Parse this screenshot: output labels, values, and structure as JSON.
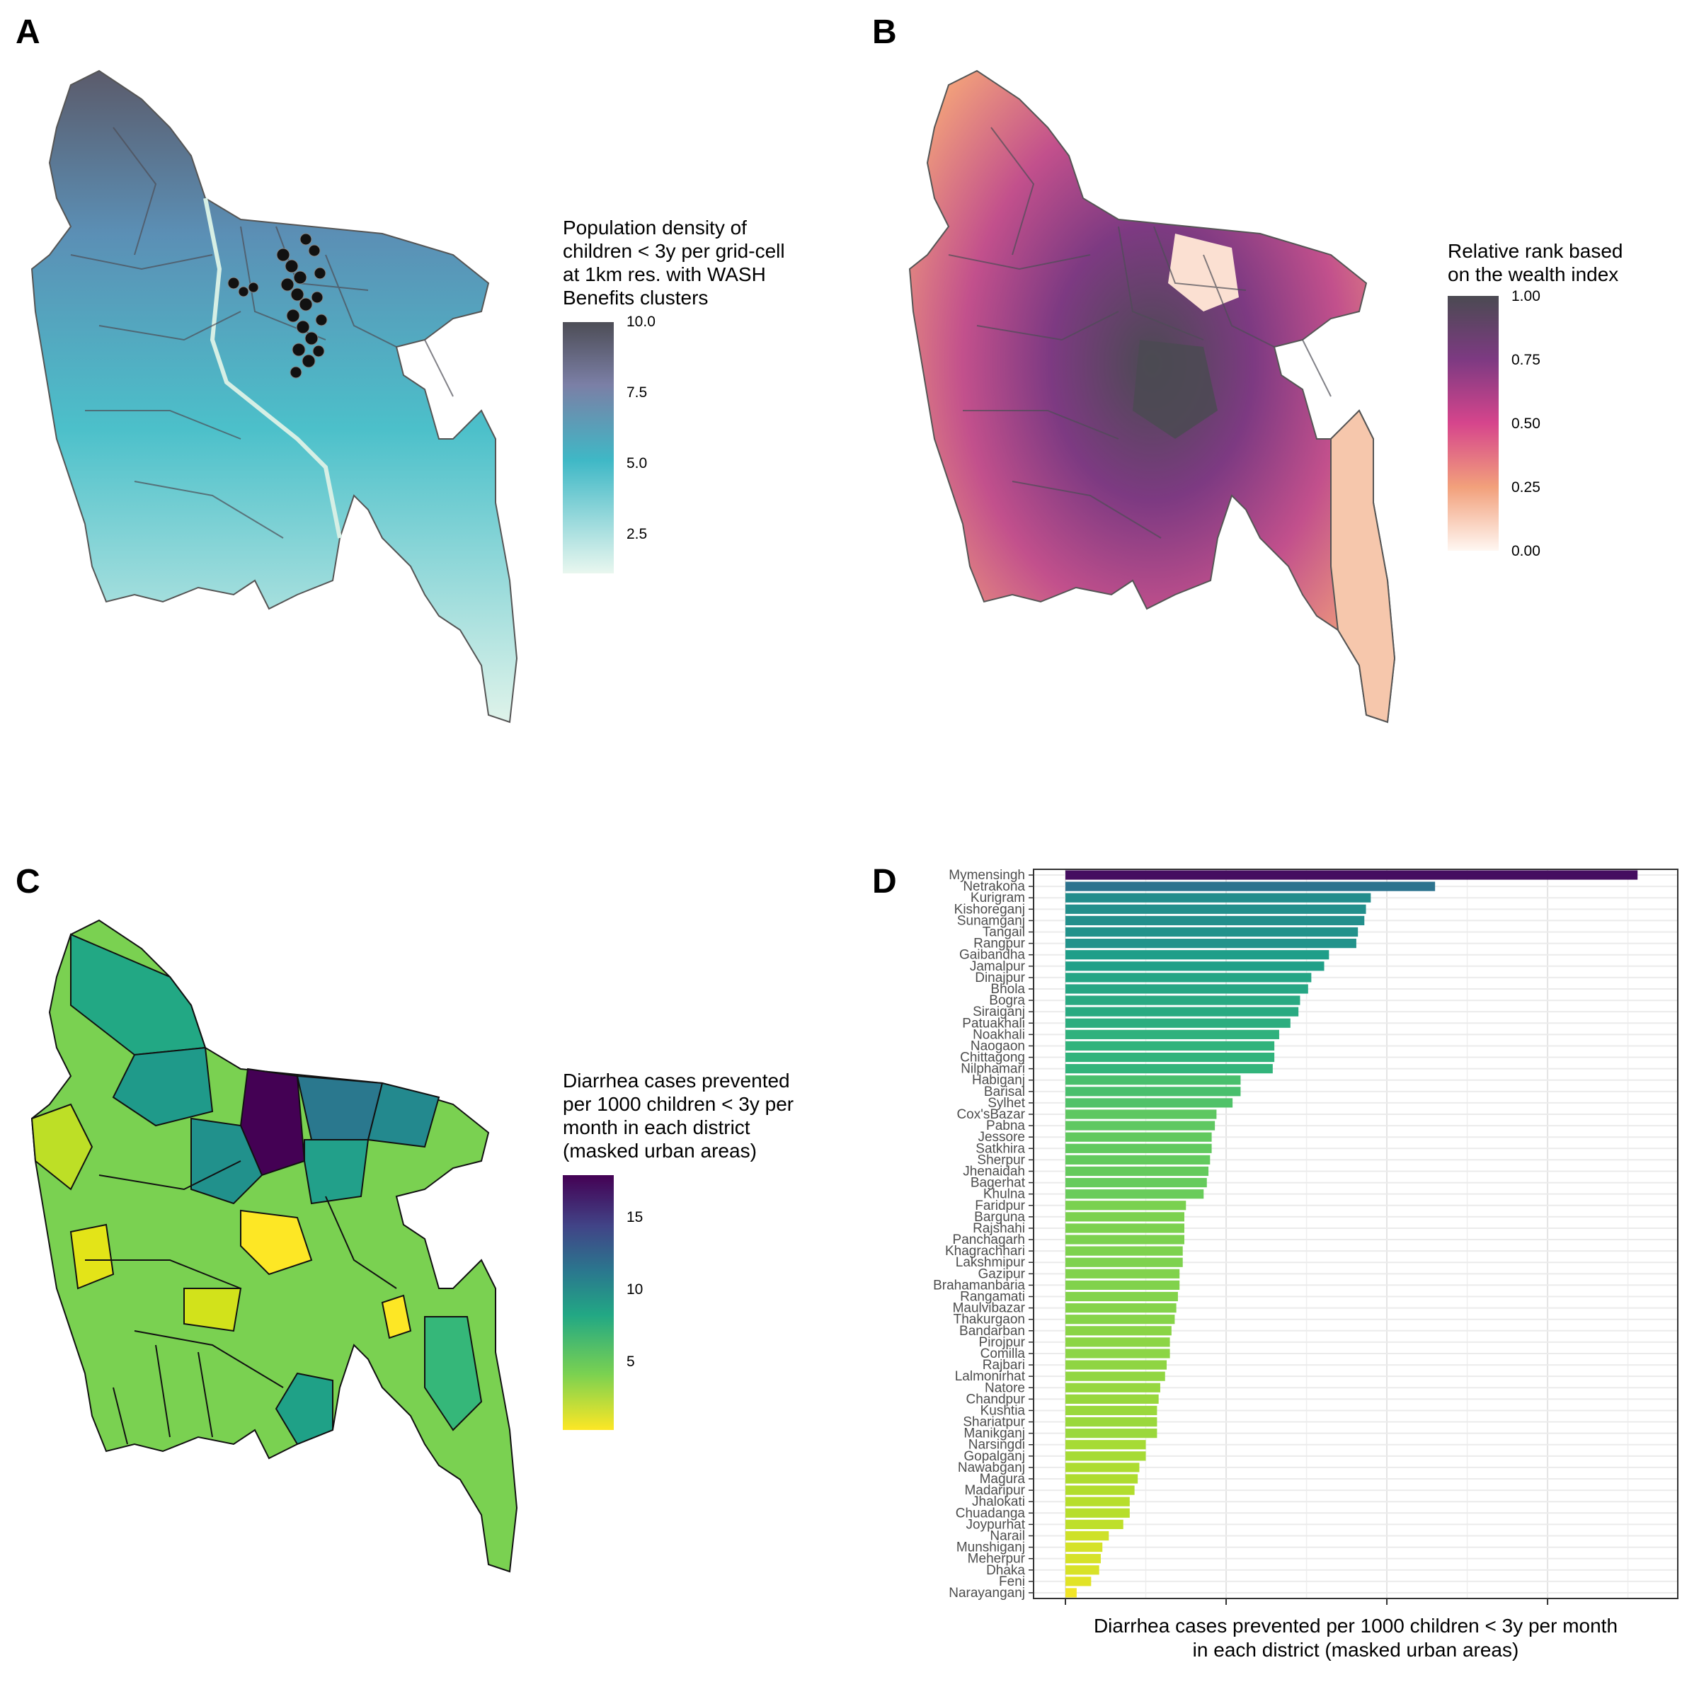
{
  "panel_labels": {
    "a": "A",
    "b": "B",
    "c": "C",
    "d": "D"
  },
  "legend_a": {
    "title_lines": [
      "Population density of",
      "children < 3y per grid-cell",
      "at 1km res. with WASH",
      "Benefits clusters"
    ],
    "ticks": [
      "10.0",
      "7.5",
      "5.0",
      "2.5"
    ],
    "colors": [
      "#e9f7ef",
      "#3fb8c6",
      "#7b7fa6",
      "#4d4d56"
    ]
  },
  "legend_b": {
    "title_lines": [
      "Relative rank based",
      "on the wealth index"
    ],
    "ticks": [
      "1.00",
      "0.75",
      "0.50",
      "0.25",
      "0.00"
    ],
    "colors": [
      "#fff7f2",
      "#f2a07b",
      "#d6458c",
      "#7d3a82",
      "#4b4a52"
    ]
  },
  "legend_c": {
    "title_lines": [
      "Diarrhea cases prevented",
      "per 1000 children < 3y per",
      "month in each district",
      "(masked urban areas)"
    ],
    "ticks": [
      "15",
      "10",
      "5"
    ],
    "colors": [
      "#fde725",
      "#7ad151",
      "#22a884",
      "#2a788e",
      "#414487",
      "#440154"
    ]
  },
  "chart_data": {
    "type": "bar",
    "orientation": "horizontal",
    "title": "",
    "xlabel_lines": [
      "Diarrhea cases prevented per 1000 children < 3y per month",
      "in each district (masked urban areas)"
    ],
    "ylabel": "",
    "xlim": [
      0,
      18.5
    ],
    "grid": true,
    "color_scale": "viridis",
    "categories": [
      "Mymensingh",
      "Netrakona",
      "Kurigram",
      "Kishoreganj",
      "Sunamganj",
      "Tangail",
      "Rangpur",
      "Gaibandha",
      "Jamalpur",
      "Dinajpur",
      "Bhola",
      "Bogra",
      "Siraiganj",
      "Patuakhali",
      "Noakhali",
      "Naogaon",
      "Chittagong",
      "Nilphamari",
      "Habiganj",
      "Barisal",
      "Sylhet",
      "Cox'sBazar",
      "Pabna",
      "Jessore",
      "Satkhira",
      "Sherpur",
      "Jhenaidah",
      "Bagerhat",
      "Khulna",
      "Faridpur",
      "Barguna",
      "Rajshahi",
      "Panchagarh",
      "Khagrachhari",
      "Lakshmipur",
      "Gazipur",
      "Brahamanbaria",
      "Rangamati",
      "Maulvibazar",
      "Thakurgaon",
      "Bandarban",
      "Pirojpur",
      "Comilla",
      "Rajbari",
      "Lalmonirhat",
      "Natore",
      "Chandpur",
      "Kushtia",
      "Shariatpur",
      "Manikganj",
      "Narsingdi",
      "Gopalganj",
      "Nawabganj",
      "Magura",
      "Madaripur",
      "Jhalokati",
      "Chuadanga",
      "Joypurhat",
      "Narail",
      "Munshiganj",
      "Meherpur",
      "Dhaka",
      "Feni",
      "Narayanganj"
    ],
    "values": [
      17.8,
      11.5,
      9.5,
      9.35,
      9.3,
      9.1,
      9.05,
      8.2,
      8.05,
      7.65,
      7.55,
      7.3,
      7.25,
      7.0,
      6.65,
      6.5,
      6.5,
      6.45,
      5.45,
      5.45,
      5.2,
      4.7,
      4.65,
      4.55,
      4.55,
      4.5,
      4.45,
      4.4,
      4.3,
      3.75,
      3.7,
      3.7,
      3.7,
      3.65,
      3.65,
      3.55,
      3.55,
      3.5,
      3.45,
      3.4,
      3.3,
      3.25,
      3.25,
      3.15,
      3.1,
      2.95,
      2.9,
      2.85,
      2.85,
      2.85,
      2.5,
      2.5,
      2.3,
      2.25,
      2.15,
      2.0,
      2.0,
      1.8,
      1.35,
      1.15,
      1.1,
      1.05,
      0.8,
      0.35
    ]
  }
}
